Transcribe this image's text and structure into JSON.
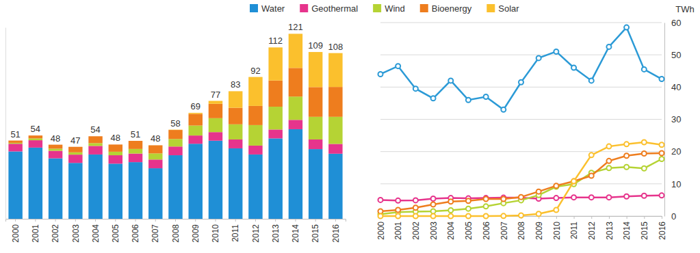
{
  "chart_data": [
    {
      "type": "bar",
      "stacked": true,
      "legend": "top",
      "tick_labels": "x",
      "categories": [
        "2000",
        "2001",
        "2002",
        "2003",
        "2004",
        "2005",
        "2006",
        "2007",
        "2008",
        "2009",
        "2010",
        "2011",
        "2012",
        "2013",
        "2014",
        "2015",
        "2016"
      ],
      "ylim": [
        0,
        125
      ],
      "totals": [
        51,
        54,
        48,
        47,
        54,
        48,
        51,
        48,
        58,
        69,
        77,
        83,
        92,
        112,
        121,
        109,
        108
      ],
      "series": [
        {
          "name": "Water",
          "color": "#1f8fd6",
          "values": [
            44,
            46.5,
            39.5,
            36.5,
            42,
            36,
            37,
            33,
            41.5,
            49,
            51,
            46,
            42,
            52.5,
            58.5,
            45.5,
            42.5
          ]
        },
        {
          "name": "Geothermal",
          "color": "#e6348c",
          "values": [
            5,
            4.8,
            4.9,
            5.4,
            5.6,
            5.5,
            5.6,
            5.7,
            5.7,
            5.4,
            5.6,
            5.8,
            5.8,
            5.8,
            6.1,
            6.3,
            6.4
          ]
        },
        {
          "name": "Wind",
          "color": "#b5d334",
          "values": [
            0.6,
            1.2,
            1.4,
            1.5,
            1.8,
            2.3,
            3,
            4,
            4.9,
            6.5,
            9.1,
            9.9,
            13.4,
            14.9,
            15.2,
            14.8,
            17.7
          ]
        },
        {
          "name": "Bioenergy",
          "color": "#ee7d1e",
          "values": [
            1.5,
            1.9,
            2.6,
            3.6,
            4.5,
            4.7,
            5.3,
            5.3,
            5.9,
            7.6,
            9.4,
            10.8,
            12.5,
            17.1,
            18.7,
            19.4,
            19.5
          ]
        },
        {
          "name": "Solar",
          "color": "#fbc02d",
          "values": [
            0,
            0,
            0,
            0,
            0,
            0,
            0,
            0.04,
            0.2,
            0.7,
            1.9,
            10.8,
            18.9,
            21.6,
            22.3,
            22.9,
            22.1
          ]
        }
      ]
    },
    {
      "type": "line",
      "grid": true,
      "marker": "circle",
      "ylabel": "TWh",
      "categories": [
        "2000",
        "2001",
        "2002",
        "2003",
        "2004",
        "2005",
        "2006",
        "2007",
        "2008",
        "2009",
        "2010",
        "2011",
        "2012",
        "2013",
        "2014",
        "2015",
        "2016"
      ],
      "ylim": [
        0,
        60
      ],
      "yticks": [
        0,
        10,
        20,
        30,
        40,
        50,
        60
      ],
      "series": [
        {
          "color": "#2b9ad6",
          "values": [
            44,
            46.5,
            39.5,
            36.5,
            42,
            36,
            37,
            33,
            41.5,
            49,
            51,
            46,
            42,
            52.5,
            58.5,
            45.5,
            42.5
          ]
        },
        {
          "color": "#e6348c",
          "values": [
            5,
            4.8,
            4.9,
            5.4,
            5.6,
            5.5,
            5.6,
            5.7,
            5.7,
            5.4,
            5.6,
            5.8,
            5.8,
            5.8,
            6.1,
            6.3,
            6.4
          ]
        },
        {
          "color": "#b5d334",
          "values": [
            0.6,
            1.2,
            1.4,
            1.5,
            1.8,
            2.3,
            3,
            4,
            4.9,
            6.5,
            9.1,
            9.9,
            13.4,
            14.9,
            15.2,
            14.8,
            17.7
          ]
        },
        {
          "color": "#ee7d1e",
          "values": [
            1.5,
            1.9,
            2.6,
            3.6,
            4.5,
            4.7,
            5.3,
            5.3,
            5.9,
            7.6,
            9.4,
            10.8,
            12.5,
            17.1,
            18.7,
            19.4,
            19.5
          ]
        },
        {
          "color": "#fbc02d",
          "values": [
            0,
            0,
            0,
            0,
            0,
            0,
            0,
            0.04,
            0.2,
            0.7,
            1.9,
            10.8,
            18.9,
            21.6,
            22.3,
            22.9,
            22.1
          ]
        }
      ]
    }
  ]
}
